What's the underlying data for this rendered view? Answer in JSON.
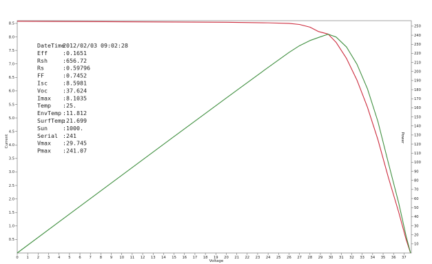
{
  "chart_data": {
    "type": "line",
    "xlabel": "Voltage",
    "ylabel_left": "Current",
    "ylabel_right": "Power",
    "xlim": [
      0,
      37.7
    ],
    "ylim_left": [
      0,
      8.6
    ],
    "ylim_right": [
      0,
      256
    ],
    "x_ticks": [
      "0",
      "1",
      "2",
      "3",
      "4",
      "5",
      "6",
      "7",
      "8",
      "9",
      "10",
      "11",
      "12",
      "13",
      "14",
      "15",
      "16",
      "17",
      "18",
      "19",
      "20",
      "21",
      "22",
      "23",
      "24",
      "25",
      "26",
      "27",
      "28",
      "29",
      "30",
      "31",
      "32",
      "33",
      "34",
      "35",
      "36",
      "37"
    ],
    "y_left_ticks": [
      "0.5",
      "1.0",
      "1.5",
      "2.0",
      "2.5",
      "3.0",
      "3.5",
      "4.0",
      "4.5",
      "5.0",
      "5.5",
      "6.0",
      "6.5",
      "7.0",
      "7.5",
      "8.0",
      "8.5"
    ],
    "y_right_ticks": [
      "10",
      "20",
      "30",
      "40",
      "50",
      "60",
      "70",
      "80",
      "90",
      "100",
      "110",
      "120",
      "130",
      "140",
      "150",
      "160",
      "170",
      "180",
      "190",
      "200",
      "210",
      "220",
      "230",
      "240",
      "250"
    ],
    "series": [
      {
        "axis": "left",
        "color": "#cc2a3c",
        "points": [
          [
            0,
            8.58
          ],
          [
            5,
            8.57
          ],
          [
            10,
            8.56
          ],
          [
            15,
            8.55
          ],
          [
            20,
            8.54
          ],
          [
            24,
            8.52
          ],
          [
            26,
            8.5
          ],
          [
            27,
            8.46
          ],
          [
            28,
            8.36
          ],
          [
            28.8,
            8.2
          ],
          [
            29.745,
            8.1035
          ],
          [
            30.5,
            7.8
          ],
          [
            31.5,
            7.2
          ],
          [
            32.5,
            6.4
          ],
          [
            33.5,
            5.4
          ],
          [
            34.5,
            4.2
          ],
          [
            35.5,
            2.8
          ],
          [
            36.5,
            1.5
          ],
          [
            37.2,
            0.5
          ],
          [
            37.624,
            0
          ]
        ]
      },
      {
        "axis": "right",
        "color": "#3f8f3f",
        "points": [
          [
            0,
            0
          ],
          [
            5,
            42.9
          ],
          [
            10,
            85.6
          ],
          [
            15,
            128.3
          ],
          [
            20,
            170.8
          ],
          [
            24,
            204.5
          ],
          [
            26,
            221
          ],
          [
            27,
            228.4
          ],
          [
            28,
            234.1
          ],
          [
            29,
            238.2
          ],
          [
            29.745,
            241.07
          ],
          [
            30.5,
            238
          ],
          [
            31.5,
            227
          ],
          [
            32.5,
            208
          ],
          [
            33.5,
            181
          ],
          [
            34.5,
            145
          ],
          [
            35.5,
            99.4
          ],
          [
            36.5,
            54.8
          ],
          [
            37.2,
            18.6
          ],
          [
            37.624,
            0
          ]
        ]
      }
    ],
    "info_panel": [
      {
        "key": "DateTime",
        "value": "2012/02/03 09:02:28"
      },
      {
        "key": "Eff",
        "value": ":0.1651"
      },
      {
        "key": "Rsh",
        "value": ":656.72"
      },
      {
        "key": "Rs",
        "value": ":0.59796"
      },
      {
        "key": "FF",
        "value": ":0.7452"
      },
      {
        "key": "Isc",
        "value": ":8.5981"
      },
      {
        "key": "Voc",
        "value": ":37.624"
      },
      {
        "key": "Imax",
        "value": ":8.1035"
      },
      {
        "key": "Temp",
        "value": ":25."
      },
      {
        "key": "EnvTemp",
        "value": ":11.812"
      },
      {
        "key": "SurfTemp",
        "value": ":21.699"
      },
      {
        "key": "Sun",
        "value": ":1000."
      },
      {
        "key": "Serial",
        "value": ":241"
      },
      {
        "key": "Vmax",
        "value": ":29.745"
      },
      {
        "key": "Pmax",
        "value": ":241.07"
      }
    ]
  }
}
